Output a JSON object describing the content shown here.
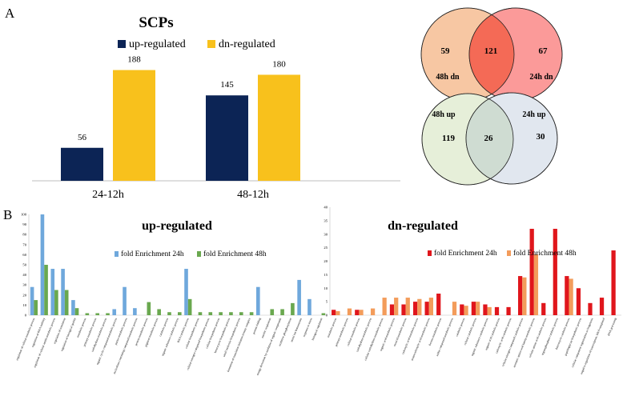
{
  "panel_labels": {
    "a": "A",
    "b": "B"
  },
  "chart_data": [
    {
      "type": "bar",
      "title": "SCPs",
      "categories": [
        "24-12h",
        "48-12h"
      ],
      "series": [
        {
          "name": "up-regulated",
          "values": [
            56,
            145
          ],
          "color": "#0c2455"
        },
        {
          "name": "dn-regulated",
          "values": [
            188,
            180
          ],
          "color": "#f8c11c"
        }
      ],
      "ylim": [
        0,
        220
      ],
      "xlabel": "",
      "ylabel": "",
      "data_labels": true,
      "legend": "top"
    },
    {
      "type": "venn",
      "sets": [
        {
          "name": "48h dn",
          "only": 59,
          "color": "#f7c7a3"
        },
        {
          "name": "24h dn",
          "only": 67,
          "color": "#fb9a99"
        }
      ],
      "intersection": 121,
      "intersection_color": "#f46a56"
    },
    {
      "type": "venn",
      "sets": [
        {
          "name": "48h up",
          "only": 119,
          "color": "#e6efd9"
        },
        {
          "name": "24h up",
          "only": 30,
          "color": "#e1e7ef"
        }
      ],
      "intersection": 26,
      "intersection_color": "#cfdcd2"
    },
    {
      "type": "bar",
      "title": "up-regulated",
      "ylim": [
        0,
        100
      ],
      "yticks": [
        0,
        10,
        20,
        30,
        40,
        50,
        60,
        70,
        80,
        90,
        100
      ],
      "categories": [
        "regulation of cellular metabolic process",
        "regulation of RNA stability",
        "regulation of cellular amide metabolic process",
        "regulation of translation",
        "regulation of biological quality",
        "metabolic process",
        "primary metabolic process",
        "carbohydrate metabolic process",
        "organic cyclic compound metabolic process",
        "purine metabolic process",
        "nucleobase-containing compound metabolic process",
        "protein metabolic process",
        "pigment metabolic process",
        "catabolic process",
        "organic substance catabolic process",
        "RNA catabolic process",
        "cellular biosynthetic process",
        "cellular nitrogen compound biosynthetic process",
        "cellular biosynthetic process",
        "heterocycle biosynthetic process",
        "small molecule biosynthetic process",
        "formation of translation initiation ternary complex",
        "protein folding",
        "aerobic respiration",
        "energy derivation by oxidation of organic compounds",
        "oxidative phosphorylation",
        "metal ion homeostasis",
        "response to stress",
        "biological regulation"
      ],
      "series": [
        {
          "name": "fold Enrichment 24h",
          "color": "#6fa8dc",
          "values": [
            28,
            100,
            46,
            46,
            15,
            0,
            0,
            0,
            6,
            28,
            7,
            0,
            0,
            0,
            0,
            46,
            0,
            0,
            0,
            0,
            0,
            0,
            28,
            0,
            0,
            0,
            35,
            16,
            0
          ]
        },
        {
          "name": "fold Enrichment 48h",
          "color": "#6aa84f",
          "values": [
            15,
            50,
            25,
            25,
            7,
            2,
            2,
            2,
            0,
            0,
            0,
            13,
            6,
            3,
            3,
            16,
            3,
            3,
            3,
            3,
            3,
            3,
            0,
            6,
            6,
            12,
            0,
            0,
            2
          ]
        }
      ]
    },
    {
      "type": "bar",
      "title": "dn-regulated",
      "ylim": [
        0,
        40
      ],
      "yticks": [
        0,
        5,
        10,
        15,
        20,
        25,
        30,
        35,
        40
      ],
      "categories": [
        "metabolic process",
        "primary metabolic process",
        "cellular metabolic process",
        "carbohydrate metabolic process",
        "cellular carbohydrate metabolic process",
        "organic acid metabolic process",
        "oxoacid metabolic process",
        "carboxylic acid metabolic process",
        "monocarboxylic acid metabolic process",
        "hexose metabolic process",
        "sulfur compound metabolic process",
        "catabolic process",
        "cellular catabolic process",
        "organic substance catabolic process",
        "organic acid catabolic process",
        "carboxylic acid catabolic process",
        "cellular nitrogen compound catabolic process",
        "aromatic amino acid family metabolic process",
        "cellular amino acid catabolic process",
        "organophosphate catabolic process",
        "heterocycle catabolic process",
        "peptidoglycan biosynthetic process",
        "cellular component organization or biogenesis",
        "negative regulation of transcription, DNA-templated",
        "RNA processing"
      ],
      "series": [
        {
          "name": "fold Enrichment 24h",
          "color": "#e0161c",
          "values": [
            2,
            0,
            2,
            0,
            0,
            4,
            4,
            5,
            5,
            8,
            0,
            4,
            5,
            4,
            3,
            3,
            14.5,
            32,
            4.5,
            32,
            14.5,
            10,
            4.5,
            6.5,
            24
          ]
        },
        {
          "name": "fold Enrichment 48h",
          "color": "#f39c5b",
          "values": [
            1.5,
            2.5,
            2,
            2.5,
            6.5,
            6.5,
            6.5,
            6,
            6.5,
            0,
            5,
            3.5,
            5,
            3,
            0,
            0,
            14,
            22.5,
            0,
            0,
            13.5,
            0,
            0,
            0,
            0
          ]
        }
      ]
    }
  ]
}
